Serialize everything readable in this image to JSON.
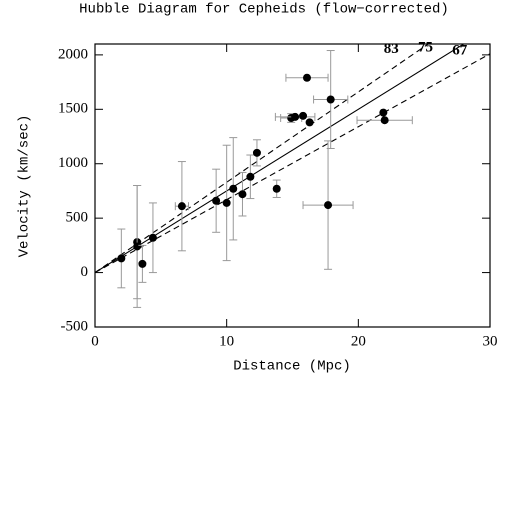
{
  "chart_data": {
    "type": "scatter",
    "title": "Hubble Diagram for Cepheids (flow−corrected)",
    "x_label": "Distance (Mpc)",
    "y_label": "Velocity (km/sec)",
    "xlim": [
      0,
      30
    ],
    "ylim": [
      -500,
      2100
    ],
    "xticks": [
      0,
      10,
      20,
      30
    ],
    "yticks": [
      -500,
      0,
      500,
      1000,
      1500,
      2000
    ],
    "series": [
      {
        "color": "#000000",
        "error_color": "#999999",
        "x": [
          2.0,
          3.2,
          3.2,
          3.6,
          4.4,
          6.6,
          9.2,
          10.0,
          10.5,
          11.2,
          11.8,
          12.3,
          13.8,
          14.9,
          15.2,
          15.8,
          16.1,
          16.3,
          17.7,
          17.9,
          21.9,
          22.0
        ],
        "values": [
          130,
          280,
          240,
          80,
          320,
          610,
          660,
          640,
          770,
          720,
          880,
          1100,
          770,
          1420,
          1430,
          1440,
          1790,
          1380,
          620,
          1590,
          1470,
          1400
        ],
        "yerr": [
          270,
          520,
          560,
          170,
          320,
          410,
          290,
          530,
          470,
          200,
          200,
          120,
          80,
          40,
          null,
          null,
          null,
          null,
          590,
          450,
          null,
          null
        ],
        "xerr": [
          null,
          null,
          null,
          null,
          null,
          0.5,
          null,
          null,
          null,
          null,
          null,
          null,
          null,
          0.8,
          1.5,
          null,
          1.6,
          null,
          1.9,
          1.3,
          null,
          2.1
        ]
      }
    ],
    "lines": [
      {
        "label": "83",
        "slope": 83,
        "dashed": true
      },
      {
        "label": "75",
        "slope": 75,
        "dashed": false
      },
      {
        "label": "67",
        "slope": 67,
        "dashed": true
      }
    ]
  }
}
